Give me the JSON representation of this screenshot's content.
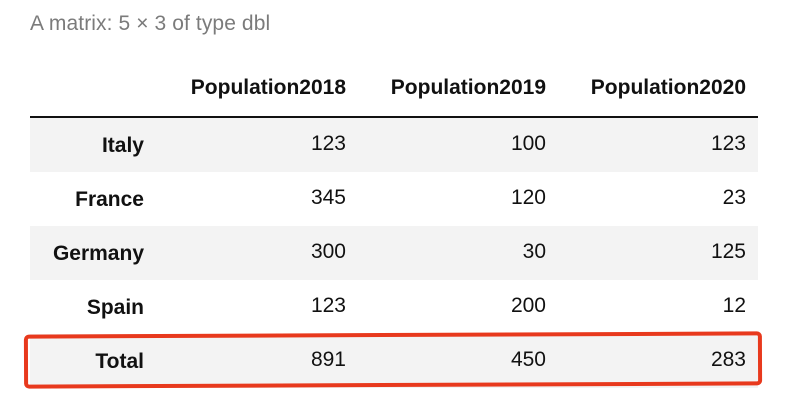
{
  "caption": "A matrix: 5 × 3 of type dbl",
  "columns": [
    "Population2018",
    "Population2019",
    "Population2020"
  ],
  "rows": [
    {
      "label": "Italy",
      "values": [
        "123",
        "100",
        "123"
      ]
    },
    {
      "label": "France",
      "values": [
        "345",
        "120",
        "23"
      ]
    },
    {
      "label": "Germany",
      "values": [
        "300",
        "30",
        "125"
      ]
    },
    {
      "label": "Spain",
      "values": [
        "123",
        "200",
        "12"
      ]
    },
    {
      "label": "Total",
      "values": [
        "891",
        "450",
        "283"
      ]
    }
  ],
  "colors": {
    "highlight": "#e8391d",
    "shaded_row": "#f3f3f3",
    "caption": "#7b7b7b"
  }
}
